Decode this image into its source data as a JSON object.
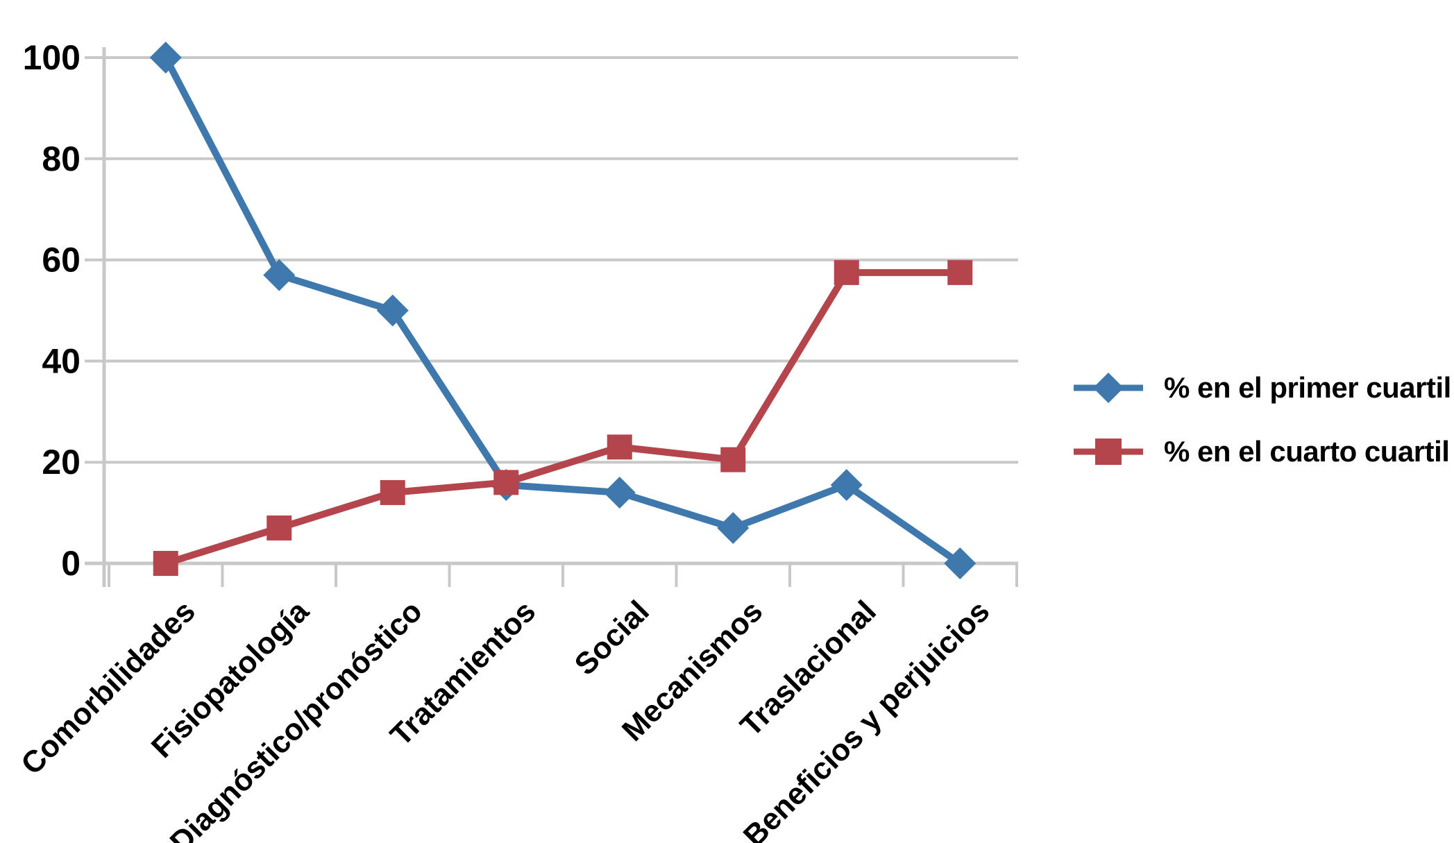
{
  "chart_data": {
    "type": "line",
    "title": "",
    "categories": [
      "Comorbilidades",
      "Fisiopatología",
      "Diagnóstico/pronóstico",
      "Tratamientos",
      "Social",
      "Mecanismos",
      "Traslacional",
      "Beneficios y perjuicios"
    ],
    "series": [
      {
        "name": "% en el primer cuartil",
        "marker": "diamond",
        "color": "#3E78AC",
        "values": [
          100,
          57,
          50,
          15.5,
          14,
          7,
          15.5,
          0
        ]
      },
      {
        "name": "% en el cuarto cuartil",
        "marker": "square",
        "color": "#B5454C",
        "values": [
          0,
          7,
          14,
          16,
          23,
          20.5,
          57.5,
          57.5
        ]
      }
    ],
    "ylim": [
      0,
      100
    ],
    "ytick_interval": 20,
    "ytick_labels": [
      "0",
      "20",
      "40",
      "60",
      "80",
      "100"
    ],
    "xlabel": "",
    "ylabel": "",
    "grid": "horizontal-only",
    "grid_color": "#C8C8C8",
    "axis_color": "#C8C8C8",
    "background_color": "#FFFFFF",
    "label_color": "#000000",
    "legend_position": "right",
    "x_label_rotation_deg": 45
  }
}
